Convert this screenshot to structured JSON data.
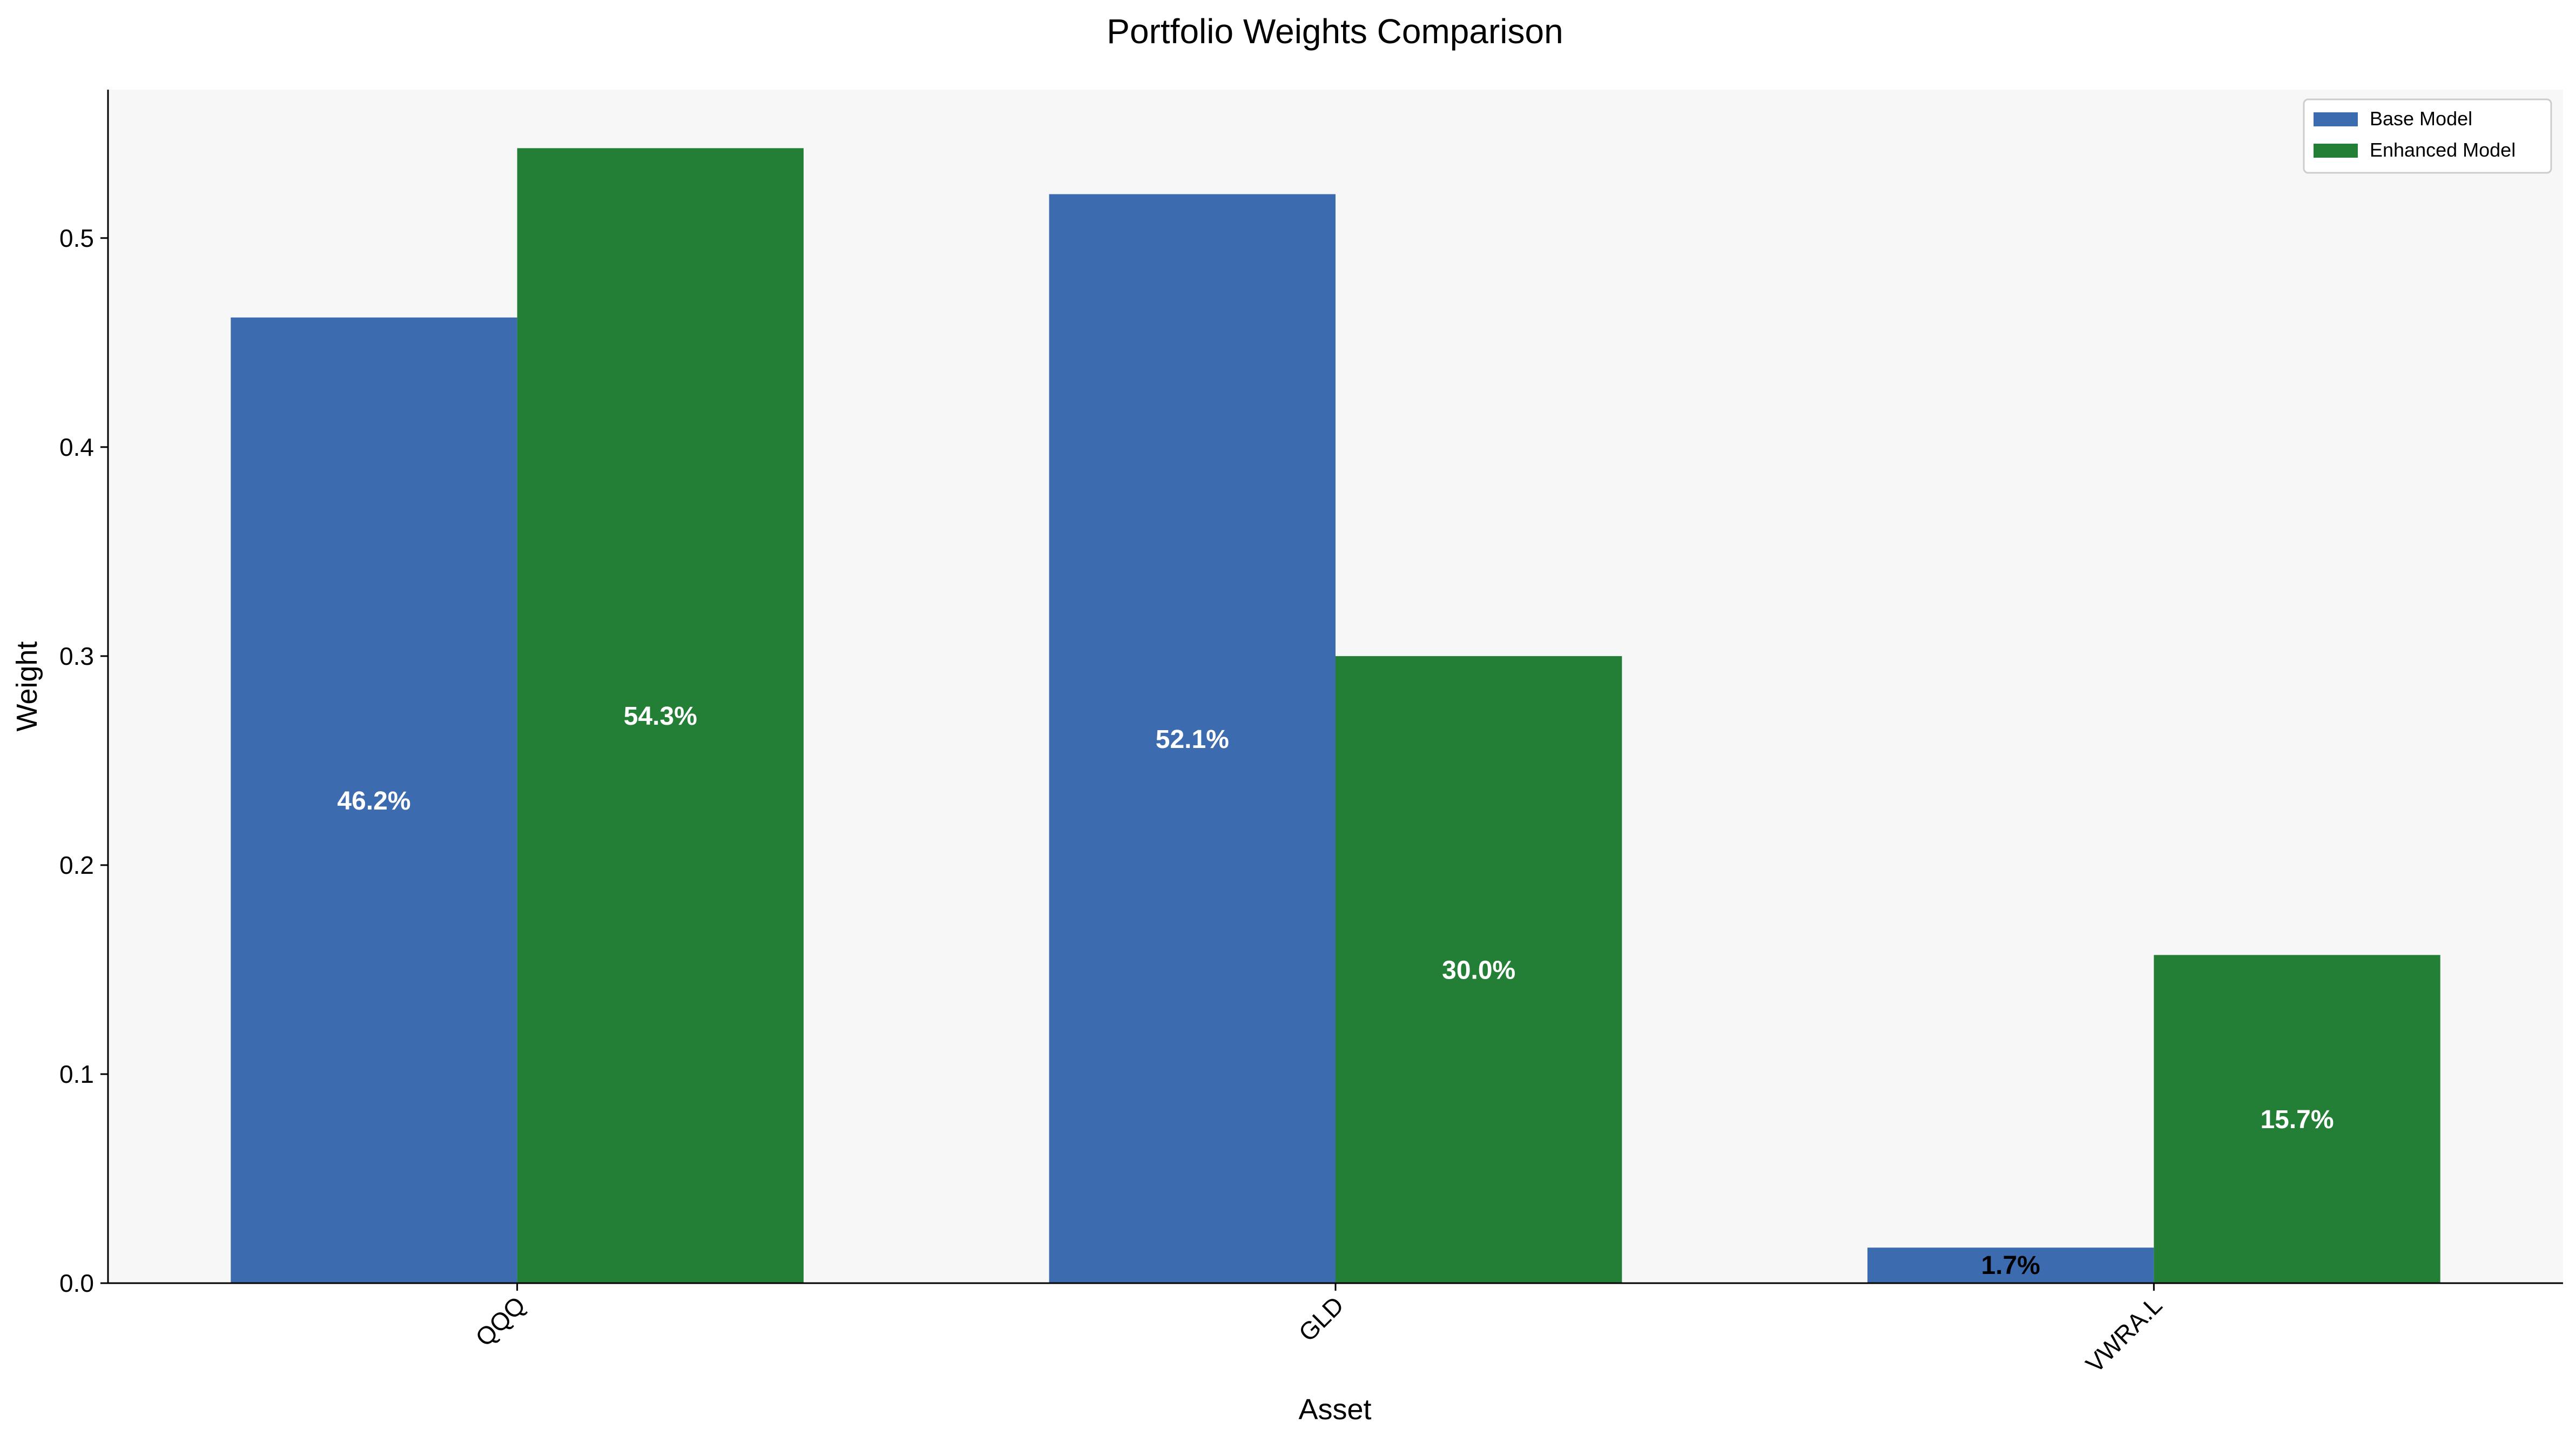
{
  "chart_data": {
    "type": "bar",
    "title": "Portfolio Weights Comparison",
    "xlabel": "Asset",
    "ylabel": "Weight",
    "categories": [
      "QQQ",
      "GLD",
      "VWRA.L"
    ],
    "series": [
      {
        "name": "Base Model",
        "values": [
          0.462,
          0.521,
          0.017
        ],
        "labels": [
          "46.2%",
          "52.1%",
          "1.7%"
        ],
        "color": "#3d6bb0"
      },
      {
        "name": "Enhanced Model",
        "values": [
          0.543,
          0.3,
          0.157
        ],
        "labels": [
          "54.3%",
          "30.0%",
          "15.7%"
        ],
        "color": "#237f35"
      }
    ],
    "ylim": [
      0,
      0.571
    ],
    "yticks": [
      0.0,
      0.1,
      0.2,
      0.3,
      0.4,
      0.5
    ],
    "ytick_labels": [
      "0.0",
      "0.1",
      "0.2",
      "0.3",
      "0.4",
      "0.5"
    ],
    "legend_position": "upper right",
    "grid": false,
    "background": "#f7f7f7",
    "xtick_rotation": 45
  }
}
